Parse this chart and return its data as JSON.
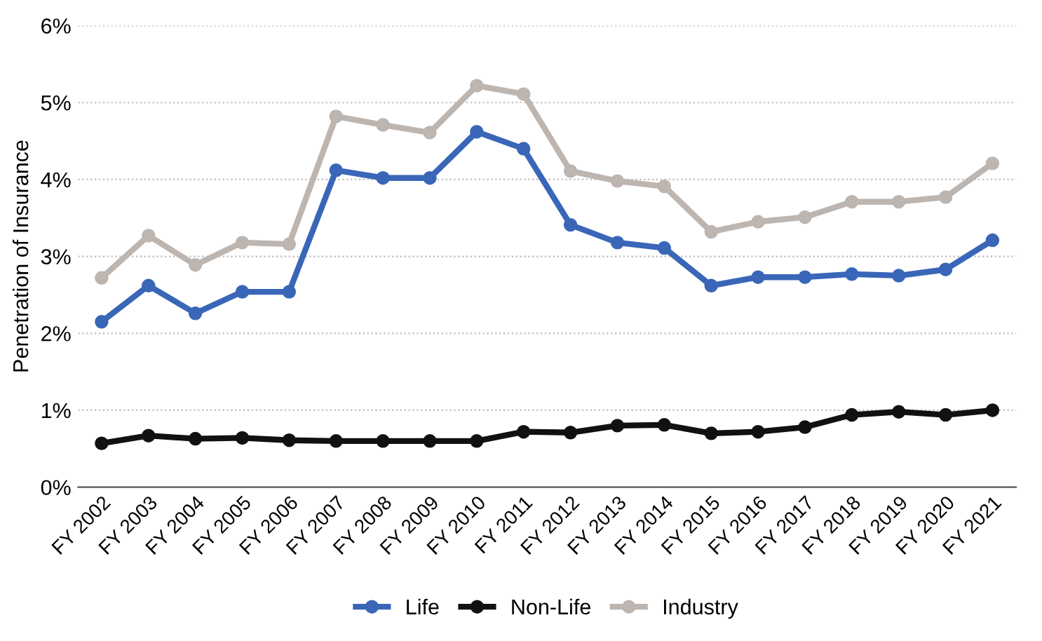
{
  "chart_data": {
    "type": "line",
    "ylabel": "Penetration of Insurance",
    "categories": [
      "FY 2002",
      "FY 2003",
      "FY 2004",
      "FY 2005",
      "FY 2006",
      "FY 2007",
      "FY 2008",
      "FY 2009",
      "FY 2010",
      "FY 2011",
      "FY 2012",
      "FY 2013",
      "FY 2014",
      "FY 2015",
      "FY 2016",
      "FY 2017",
      "FY 2018",
      "FY 2019",
      "FY 2020",
      "FY 2021"
    ],
    "series": [
      {
        "name": "Life",
        "color": "#3a66b8",
        "values": [
          2.15,
          2.62,
          2.26,
          2.54,
          2.54,
          4.12,
          4.02,
          4.02,
          4.62,
          4.4,
          3.41,
          3.18,
          3.11,
          2.62,
          2.73,
          2.73,
          2.77,
          2.75,
          2.83,
          3.21
        ]
      },
      {
        "name": "Non-Life",
        "color": "#111111",
        "values": [
          0.57,
          0.67,
          0.63,
          0.64,
          0.61,
          0.6,
          0.6,
          0.6,
          0.6,
          0.72,
          0.71,
          0.8,
          0.81,
          0.7,
          0.72,
          0.78,
          0.94,
          0.98,
          0.94,
          1.0
        ]
      },
      {
        "name": "Industry",
        "color": "#bdb5b0",
        "values": [
          2.72,
          3.27,
          2.89,
          3.18,
          3.16,
          4.82,
          4.71,
          4.61,
          5.22,
          5.11,
          4.11,
          3.98,
          3.91,
          3.32,
          3.45,
          3.51,
          3.71,
          3.71,
          3.77,
          4.21
        ]
      }
    ],
    "ylim": [
      0,
      6
    ],
    "yticks": [
      {
        "value": 0,
        "label": "0%"
      },
      {
        "value": 1,
        "label": "1%"
      },
      {
        "value": 2,
        "label": "2%"
      },
      {
        "value": 3,
        "label": "3%"
      },
      {
        "value": 4,
        "label": "4%"
      },
      {
        "value": 5,
        "label": "5%"
      },
      {
        "value": 6,
        "label": "6%"
      }
    ],
    "grid": "y",
    "legend": "bottom",
    "marker": "circle",
    "line_style": "solid"
  }
}
